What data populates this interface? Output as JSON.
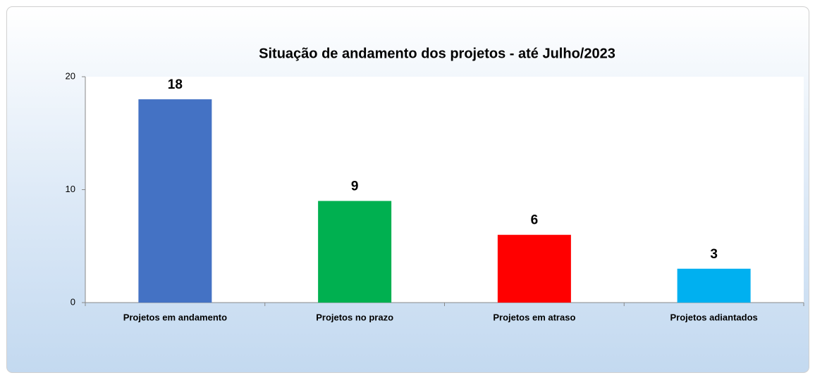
{
  "chart_data": {
    "type": "bar",
    "title": "Situação de andamento dos projetos - até Julho/2023",
    "categories": [
      "Projetos em andamento",
      "Projetos no prazo",
      "Projetos em atraso",
      "Projetos adiantados"
    ],
    "values": [
      18,
      9,
      6,
      3
    ],
    "colors": [
      "#4472c4",
      "#00b050",
      "#ff0000",
      "#00b0f0"
    ],
    "ylim": [
      0,
      20
    ],
    "yticks": [
      0,
      10,
      20
    ],
    "grid": false
  }
}
